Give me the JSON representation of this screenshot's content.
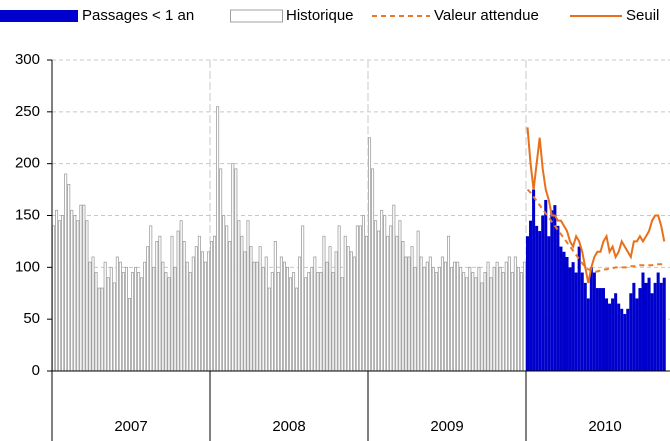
{
  "chart_data": {
    "type": "bar",
    "categories": [
      "2007",
      "2008",
      "2009",
      "2010"
    ],
    "ylim": [
      0,
      300
    ],
    "yticks": [
      0,
      50,
      100,
      150,
      200,
      250,
      300
    ],
    "grid": true,
    "legend": "top",
    "series": [
      {
        "name": "Passages < 1 an",
        "color": "#0000cc",
        "style": "bar",
        "values": [
          [],
          [],
          [],
          [
            130,
            145,
            175,
            140,
            135,
            150,
            165,
            130,
            155,
            160,
            140,
            120,
            115,
            110,
            100,
            105,
            95,
            120,
            95,
            85,
            70,
            100,
            95,
            80,
            80,
            80,
            70,
            65,
            70,
            75,
            65,
            60,
            55,
            60,
            75,
            85,
            70,
            80,
            95,
            85,
            90,
            75,
            85,
            95,
            85,
            90
          ]
        ]
      },
      {
        "name": "Historique",
        "color": "#a0a0a0",
        "style": "outline",
        "values": [
          [
            140,
            155,
            145,
            150,
            190,
            180,
            155,
            150,
            145,
            160,
            160,
            145,
            105,
            110,
            95,
            80,
            80,
            105,
            90,
            100,
            85,
            110,
            105,
            95,
            100,
            70,
            95,
            100,
            95,
            90,
            105,
            120,
            140,
            100,
            125,
            130,
            105,
            95,
            90,
            130,
            100,
            135,
            145,
            125,
            105,
            95,
            110,
            120,
            130,
            115,
            105,
            115
          ],
          [
            125,
            130,
            255,
            195,
            150,
            140,
            125,
            200,
            195,
            145,
            130,
            115,
            145,
            120,
            105,
            105,
            120,
            100,
            110,
            80,
            95,
            125,
            95,
            110,
            105,
            100,
            90,
            95,
            80,
            110,
            140,
            90,
            95,
            100,
            110,
            95,
            95,
            130,
            105,
            120,
            95,
            115,
            140,
            90,
            130,
            120,
            115,
            110,
            140,
            140,
            150,
            130
          ],
          [
            225,
            195,
            145,
            135,
            155,
            150,
            130,
            140,
            160,
            130,
            145,
            125,
            110,
            110,
            120,
            100,
            135,
            110,
            100,
            105,
            110,
            100,
            95,
            100,
            110,
            105,
            130,
            100,
            105,
            105,
            100,
            95,
            90,
            100,
            95,
            90,
            100,
            85,
            95,
            105,
            90,
            100,
            105,
            100,
            95,
            105,
            110,
            95,
            110,
            100,
            95,
            105
          ],
          []
        ]
      },
      {
        "name": "Valeur attendue",
        "color": "#e87a2a",
        "style": "dashed",
        "values": [
          [],
          [],
          [],
          [
            175,
            172,
            168,
            164,
            160,
            156,
            152,
            148,
            144,
            140,
            136,
            132,
            128,
            124,
            120,
            116,
            112,
            108,
            104,
            100,
            98,
            97,
            96,
            96,
            97,
            98,
            98,
            99,
            99,
            100,
            100,
            100,
            100,
            100,
            101,
            101,
            101,
            102,
            102,
            102,
            102,
            102,
            103,
            103,
            103,
            103
          ]
        ]
      },
      {
        "name": "Seuil",
        "color": "#e8701a",
        "style": "line",
        "values": [
          [],
          [],
          [],
          [
            235,
            200,
            175,
            200,
            225,
            195,
            175,
            165,
            150,
            150,
            145,
            145,
            140,
            135,
            125,
            120,
            130,
            125,
            115,
            100,
            85,
            100,
            110,
            115,
            115,
            125,
            130,
            115,
            120,
            110,
            115,
            125,
            120,
            115,
            110,
            125,
            125,
            130,
            125,
            130,
            135,
            145,
            150,
            150,
            140,
            125
          ]
        ]
      }
    ]
  }
}
